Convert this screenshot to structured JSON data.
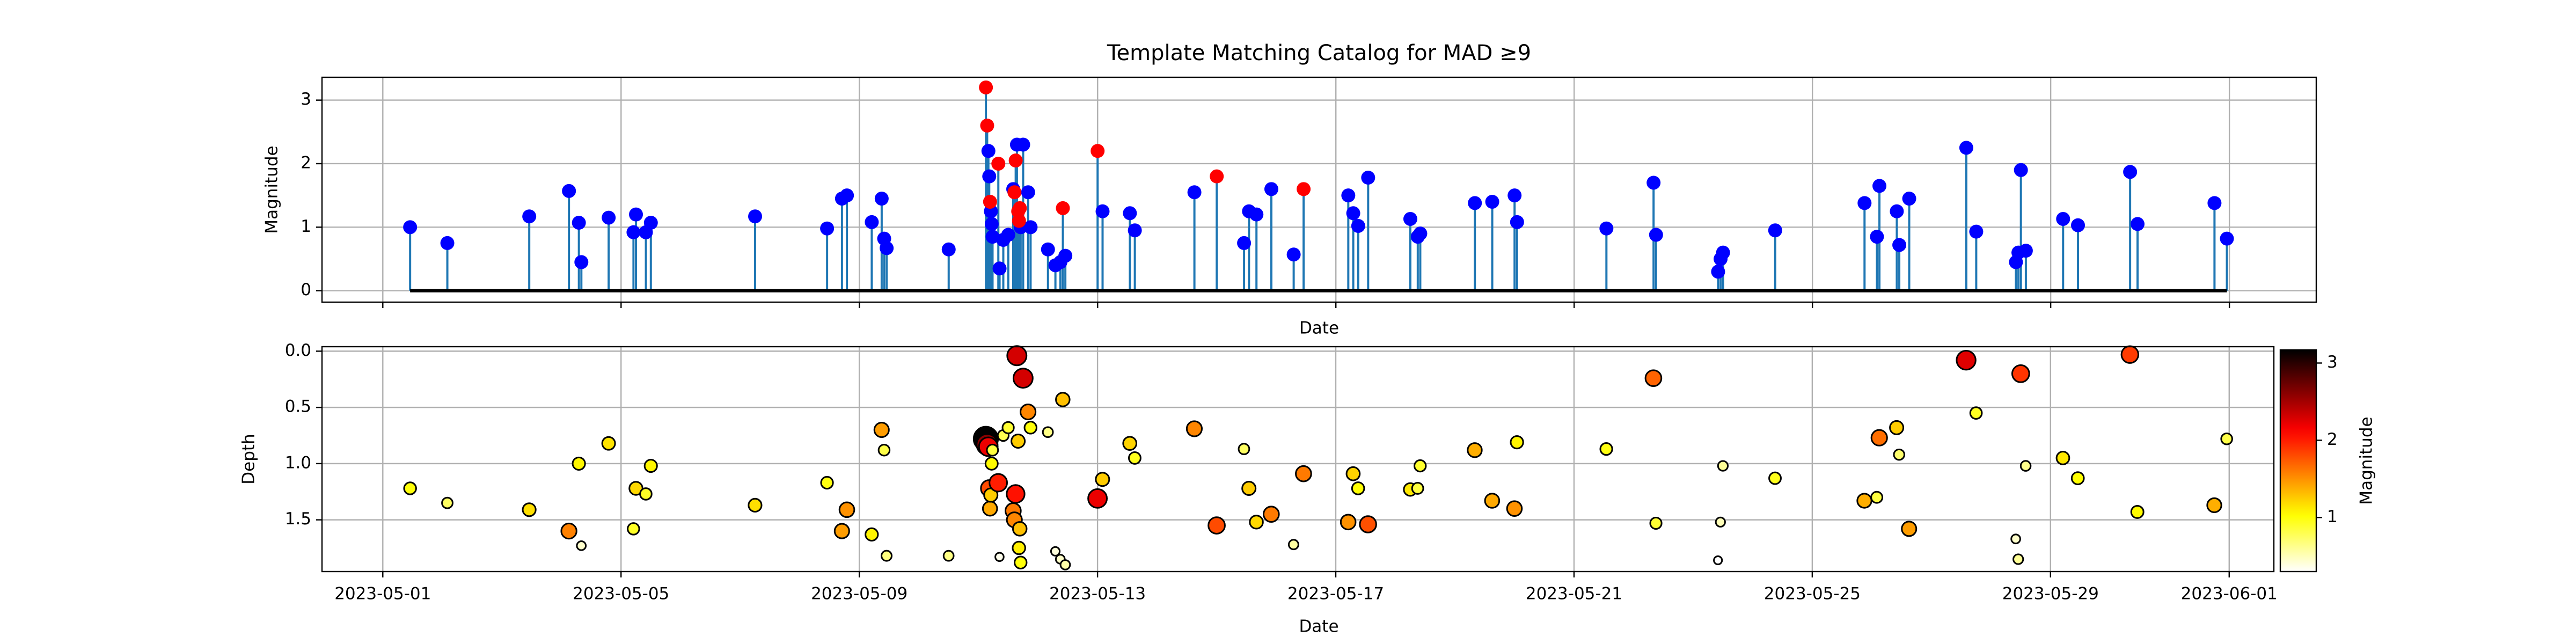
{
  "chart_data": [
    {
      "type": "stem",
      "title": "Template Matching Catalog for MAD ≥9",
      "xlabel": "Date",
      "ylabel": "Magnitude",
      "xlim": [
        "2023-04-29T23:30",
        "2023-06-02T11:00"
      ],
      "xticks": [
        "2023-05-01",
        "2023-05-05",
        "2023-05-09",
        "2023-05-13",
        "2023-05-17",
        "2023-05-21",
        "2023-05-25",
        "2023-05-29",
        "2023-06-01"
      ],
      "xtick_labels_shown": false,
      "ylim": [
        -0.18,
        3.36
      ],
      "yticks": [
        0,
        1,
        2,
        3
      ],
      "grid": true,
      "stem_color": "#1f77b4",
      "baseline_color": "#000000",
      "series": [
        {
          "color": "#0000ff",
          "x": [
            "2023-05-01T11:00",
            "2023-05-02T02:00",
            "2023-05-03T11:00",
            "2023-05-04T03:00",
            "2023-05-04T07:00",
            "2023-05-04T08:00",
            "2023-05-04T19:00",
            "2023-05-05T05:00",
            "2023-05-05T06:00",
            "2023-05-05T10:00",
            "2023-05-05T12:00",
            "2023-05-07T06:00",
            "2023-05-08T11:00",
            "2023-05-08T17:00",
            "2023-05-08T19:00",
            "2023-05-09T05:00",
            "2023-05-09T09:00",
            "2023-05-09T10:00",
            "2023-05-09T11:00",
            "2023-05-10T12:00",
            "2023-05-11T04:00",
            "2023-05-11T04:20",
            "2023-05-11T05:00",
            "2023-05-11T05:20",
            "2023-05-11T05:40",
            "2023-05-11T08:30",
            "2023-05-11T10:00",
            "2023-05-11T12:00",
            "2023-05-11T14:00",
            "2023-05-11T15:30",
            "2023-05-11T17:00",
            "2023-05-11T18:00",
            "2023-05-11T20:00",
            "2023-05-11T21:00",
            "2023-05-12T04:00",
            "2023-05-12T07:00",
            "2023-05-12T09:00",
            "2023-05-12T11:00",
            "2023-05-13T02:00",
            "2023-05-13T13:00",
            "2023-05-13T15:00",
            "2023-05-14T15:00",
            "2023-05-15T11:00",
            "2023-05-15T13:00",
            "2023-05-15T16:00",
            "2023-05-15T22:00",
            "2023-05-16T07:00",
            "2023-05-17T05:00",
            "2023-05-17T07:00",
            "2023-05-17T09:00",
            "2023-05-17T13:00",
            "2023-05-18T06:00",
            "2023-05-18T09:00",
            "2023-05-18T10:00",
            "2023-05-19T08:00",
            "2023-05-19T15:00",
            "2023-05-20T00:00",
            "2023-05-20T01:00",
            "2023-05-21T13:00",
            "2023-05-22T08:00",
            "2023-05-22T09:00",
            "2023-05-23T10:00",
            "2023-05-23T11:00",
            "2023-05-23T12:00",
            "2023-05-24T09:00",
            "2023-05-25T21:00",
            "2023-05-26T02:00",
            "2023-05-26T03:00",
            "2023-05-26T10:00",
            "2023-05-26T11:00",
            "2023-05-26T15:00",
            "2023-05-27T14:00",
            "2023-05-27T18:00",
            "2023-05-28T10:00",
            "2023-05-28T11:00",
            "2023-05-28T12:00",
            "2023-05-28T14:00",
            "2023-05-29T05:00",
            "2023-05-29T11:00",
            "2023-05-30T08:00",
            "2023-05-30T11:00",
            "2023-05-31T18:00",
            "2023-05-31T23:00"
          ],
          "values": [
            1.0,
            0.75,
            1.17,
            1.57,
            1.07,
            0.45,
            1.15,
            0.92,
            1.2,
            0.92,
            1.07,
            1.17,
            0.98,
            1.45,
            1.5,
            1.08,
            1.45,
            0.82,
            0.67,
            0.65,
            2.2,
            1.8,
            1.25,
            1.05,
            0.85,
            0.35,
            0.8,
            0.88,
            1.6,
            2.3,
            1.0,
            2.3,
            1.55,
            1.0,
            0.65,
            0.4,
            0.45,
            0.55,
            1.25,
            1.22,
            0.95,
            1.55,
            0.75,
            1.25,
            1.2,
            1.6,
            0.57,
            1.5,
            1.22,
            1.02,
            1.78,
            1.13,
            0.85,
            0.9,
            1.38,
            1.4,
            1.5,
            1.08,
            0.98,
            1.7,
            0.88,
            0.3,
            0.5,
            0.6,
            0.95,
            1.38,
            0.85,
            1.65,
            1.25,
            0.72,
            1.45,
            2.25,
            0.93,
            0.45,
            0.6,
            1.9,
            0.63,
            1.13,
            1.03,
            1.87,
            1.05,
            1.38,
            0.82
          ]
        },
        {
          "color": "#ff0000",
          "x": [
            "2023-05-11T03:00",
            "2023-05-11T03:30",
            "2023-05-11T04:40",
            "2023-05-11T08:00",
            "2023-05-11T14:30",
            "2023-05-11T15:00",
            "2023-05-11T16:00",
            "2023-05-11T16:20",
            "2023-05-11T16:40",
            "2023-05-12T10:00",
            "2023-05-13T00:00",
            "2023-05-15T00:00",
            "2023-05-16T11:00"
          ],
          "values": [
            3.2,
            2.6,
            1.4,
            2.0,
            1.55,
            2.05,
            1.25,
            1.1,
            1.3,
            1.3,
            2.2,
            1.8,
            1.6
          ]
        }
      ]
    },
    {
      "type": "scatter",
      "xlabel": "Date",
      "ylabel": "Depth",
      "xlim": [
        "2023-04-29T23:30",
        "2023-06-01T18:00"
      ],
      "xticks": [
        "2023-05-01",
        "2023-05-05",
        "2023-05-09",
        "2023-05-13",
        "2023-05-17",
        "2023-05-21",
        "2023-05-25",
        "2023-05-29",
        "2023-06-01"
      ],
      "ylim": [
        1.96,
        -0.04
      ],
      "yticks": [
        {
          "value": 0,
          "label": "0.0"
        },
        0.5,
        {
          "value": 1,
          "label": "1.0"
        },
        1.5
      ],
      "grid": true,
      "colormap": "hot_r",
      "edge_color": "#000000",
      "colorbar": {
        "label": "Magnitude",
        "clim": [
          0.3,
          3.17
        ],
        "ticks": [
          1,
          2,
          3
        ]
      },
      "x": [
        "2023-05-01T11:00",
        "2023-05-02T02:00",
        "2023-05-03T11:00",
        "2023-05-04T03:00",
        "2023-05-04T07:00",
        "2023-05-04T08:00",
        "2023-05-04T19:00",
        "2023-05-05T05:00",
        "2023-05-05T06:00",
        "2023-05-05T10:00",
        "2023-05-05T12:00",
        "2023-05-07T06:00",
        "2023-05-08T11:00",
        "2023-05-08T17:00",
        "2023-05-08T19:00",
        "2023-05-09T05:00",
        "2023-05-09T09:00",
        "2023-05-09T10:00",
        "2023-05-09T11:00",
        "2023-05-10T12:00",
        "2023-05-11T03:00",
        "2023-05-11T03:30",
        "2023-05-11T04:00",
        "2023-05-11T04:20",
        "2023-05-11T04:40",
        "2023-05-11T05:00",
        "2023-05-11T05:20",
        "2023-05-11T05:40",
        "2023-05-11T08:00",
        "2023-05-11T08:30",
        "2023-05-11T10:00",
        "2023-05-11T12:00",
        "2023-05-11T14:00",
        "2023-05-11T14:30",
        "2023-05-11T15:00",
        "2023-05-11T15:30",
        "2023-05-11T16:00",
        "2023-05-11T16:20",
        "2023-05-11T16:40",
        "2023-05-11T17:00",
        "2023-05-11T18:00",
        "2023-05-11T20:00",
        "2023-05-11T21:00",
        "2023-05-12T04:00",
        "2023-05-12T07:00",
        "2023-05-12T09:00",
        "2023-05-12T10:00",
        "2023-05-12T11:00",
        "2023-05-13T00:00",
        "2023-05-13T02:00",
        "2023-05-13T13:00",
        "2023-05-13T15:00",
        "2023-05-14T15:00",
        "2023-05-15T00:00",
        "2023-05-15T11:00",
        "2023-05-15T13:00",
        "2023-05-15T16:00",
        "2023-05-15T22:00",
        "2023-05-16T07:00",
        "2023-05-16T11:00",
        "2023-05-17T05:00",
        "2023-05-17T07:00",
        "2023-05-17T09:00",
        "2023-05-17T13:00",
        "2023-05-18T06:00",
        "2023-05-18T09:00",
        "2023-05-18T10:00",
        "2023-05-19T08:00",
        "2023-05-19T15:00",
        "2023-05-20T00:00",
        "2023-05-20T01:00",
        "2023-05-21T13:00",
        "2023-05-22T08:00",
        "2023-05-22T09:00",
        "2023-05-23T10:00",
        "2023-05-23T11:00",
        "2023-05-23T12:00",
        "2023-05-24T09:00",
        "2023-05-25T21:00",
        "2023-05-26T02:00",
        "2023-05-26T03:00",
        "2023-05-26T10:00",
        "2023-05-26T11:00",
        "2023-05-26T15:00",
        "2023-05-27T14:00",
        "2023-05-27T18:00",
        "2023-05-28T10:00",
        "2023-05-28T11:00",
        "2023-05-28T12:00",
        "2023-05-28T14:00",
        "2023-05-29T05:00",
        "2023-05-29T11:00",
        "2023-05-30T08:00",
        "2023-05-30T11:00",
        "2023-05-31T18:00",
        "2023-05-31T23:00"
      ],
      "values": [
        1.22,
        1.35,
        1.41,
        1.6,
        1.0,
        1.73,
        0.82,
        1.58,
        1.22,
        1.27,
        1.02,
        1.37,
        1.17,
        1.6,
        1.41,
        1.63,
        0.7,
        0.88,
        1.82,
        1.82,
        0.78,
        0.83,
        0.85,
        1.22,
        1.4,
        1.28,
        1.0,
        0.88,
        1.17,
        1.83,
        0.75,
        0.68,
        1.42,
        1.5,
        1.27,
        0.04,
        0.8,
        1.75,
        1.58,
        1.88,
        0.24,
        0.54,
        0.68,
        0.72,
        1.78,
        1.85,
        0.43,
        1.9,
        1.31,
        1.14,
        0.82,
        0.95,
        0.69,
        1.55,
        0.87,
        1.22,
        1.52,
        1.45,
        1.72,
        1.09,
        1.52,
        1.09,
        1.22,
        1.54,
        1.23,
        1.22,
        1.02,
        0.88,
        1.33,
        1.4,
        0.81,
        0.87,
        0.24,
        1.53,
        1.86,
        1.52,
        1.02,
        1.13,
        1.33,
        1.3,
        0.77,
        0.68,
        0.92,
        1.58,
        0.08,
        0.55,
        1.67,
        1.85,
        0.2,
        1.02,
        0.95,
        1.13,
        0.03,
        1.43,
        1.37,
        0.78
      ],
      "color_values": [
        1.0,
        0.75,
        1.17,
        1.57,
        1.07,
        0.45,
        1.15,
        0.92,
        1.2,
        0.92,
        1.07,
        1.17,
        0.98,
        1.45,
        1.5,
        1.08,
        1.45,
        0.82,
        0.67,
        0.65,
        3.2,
        2.6,
        2.2,
        1.8,
        1.4,
        1.25,
        1.05,
        0.85,
        2.0,
        0.35,
        0.8,
        0.88,
        1.6,
        1.55,
        2.05,
        2.3,
        1.25,
        1.1,
        1.3,
        1.0,
        2.3,
        1.55,
        1.0,
        0.65,
        0.4,
        0.45,
        1.3,
        0.55,
        2.2,
        1.25,
        1.22,
        0.95,
        1.55,
        1.8,
        0.75,
        1.25,
        1.2,
        1.6,
        0.57,
        1.6,
        1.5,
        1.22,
        1.02,
        1.78,
        1.13,
        0.85,
        0.9,
        1.38,
        1.4,
        1.5,
        1.08,
        0.98,
        1.7,
        0.88,
        0.3,
        0.5,
        0.6,
        0.95,
        1.38,
        0.85,
        1.65,
        1.25,
        0.72,
        1.45,
        2.25,
        0.93,
        0.45,
        0.6,
        1.9,
        0.63,
        1.13,
        1.03,
        1.87,
        1.05,
        1.38,
        0.82
      ]
    }
  ]
}
